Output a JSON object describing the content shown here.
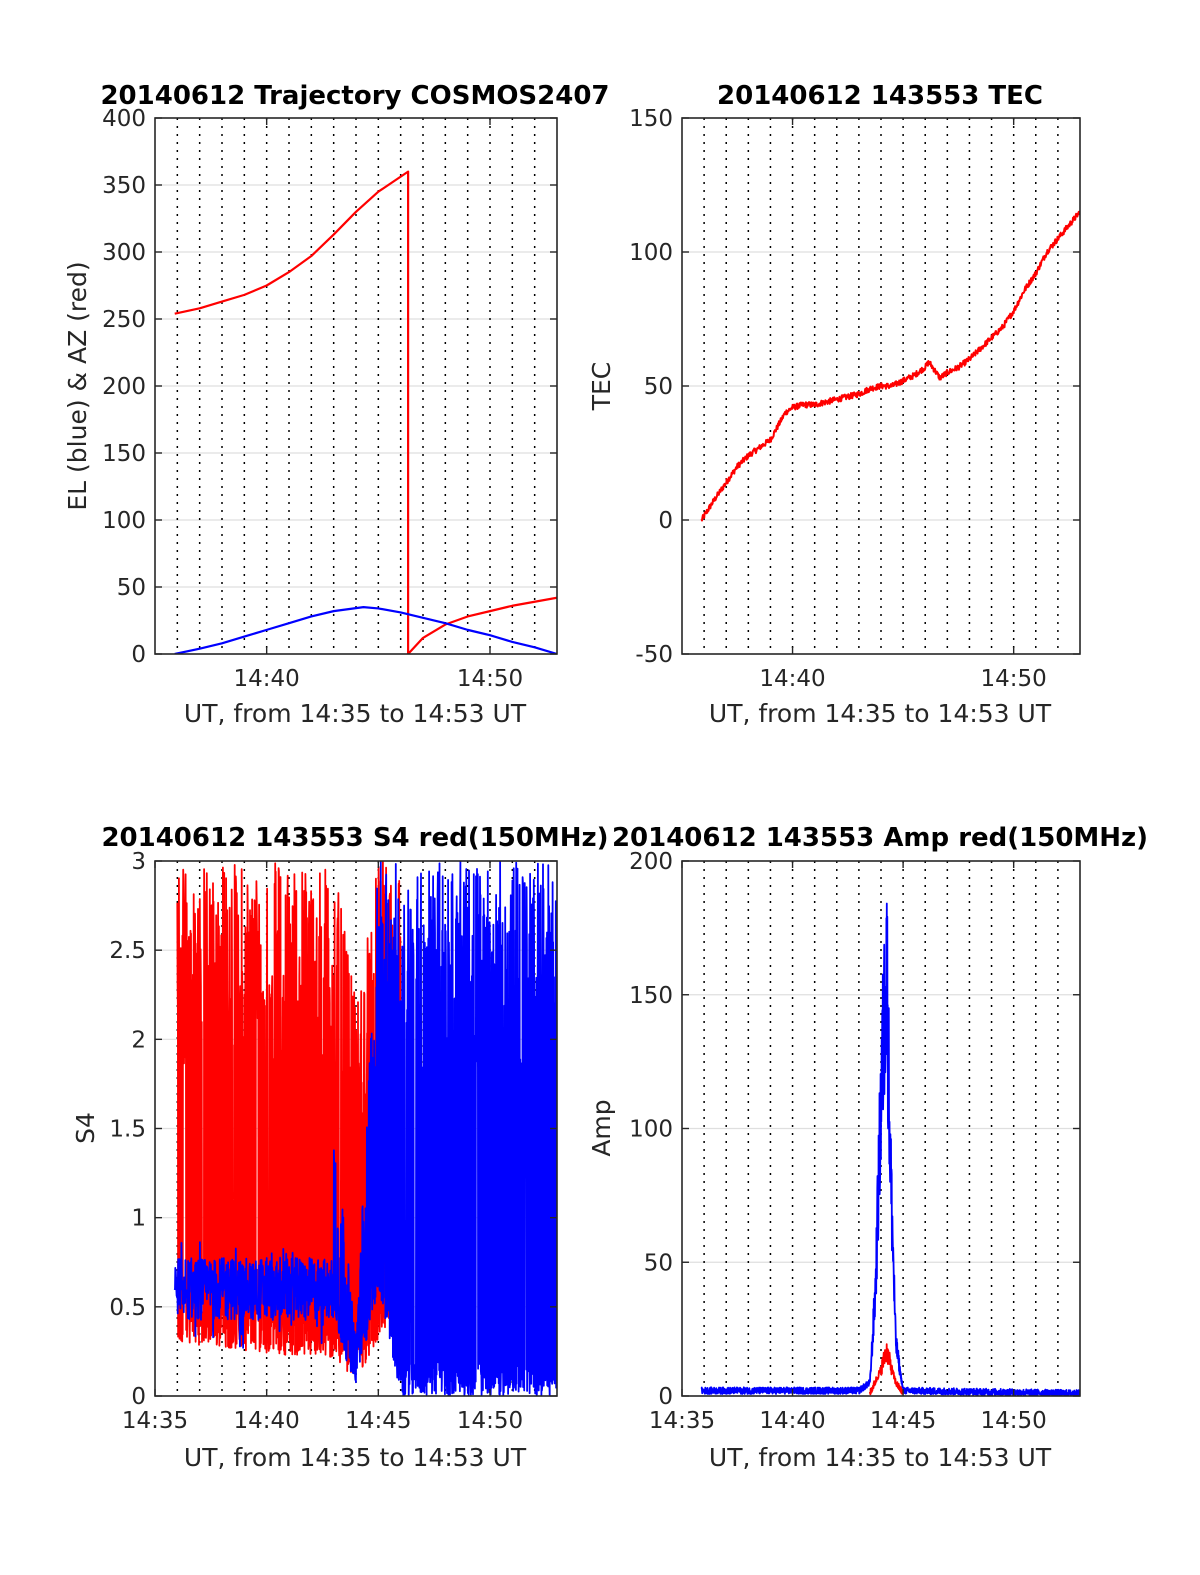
{
  "figure": {
    "colors": {
      "red": "#ff0000",
      "blue": "#0000ff",
      "grid": "#dfdfdf",
      "axis": "#262626"
    }
  },
  "chart_data": [
    {
      "id": "traj",
      "type": "line",
      "title": "20140612 Trajectory COSMOS2407",
      "xlabel": "UT, from 14:35 to 14:53 UT",
      "ylabel": "EL (blue) & AZ (red)",
      "xlim": [
        "14:35",
        "14:53"
      ],
      "ylim": [
        0,
        400
      ],
      "yticks": [
        0,
        50,
        100,
        150,
        200,
        250,
        300,
        350,
        400
      ],
      "xticks": [
        "14:40",
        "14:50"
      ],
      "grid": "horizontal gridlines; dotted vertical lines every minute",
      "series": [
        {
          "color": "#ff0000",
          "points": [
            [
              "14:35:53",
              254
            ],
            [
              "14:37:00",
              258
            ],
            [
              "14:38:00",
              263
            ],
            [
              "14:39:00",
              268
            ],
            [
              "14:40:00",
              275
            ],
            [
              "14:41:00",
              285
            ],
            [
              "14:42:00",
              297
            ],
            [
              "14:43:00",
              313
            ],
            [
              "14:44:00",
              330
            ],
            [
              "14:45:00",
              345
            ],
            [
              "14:46:20",
              360
            ],
            [
              "14:46:20",
              0
            ],
            [
              "14:47:00",
              12
            ],
            [
              "14:48:00",
              22
            ],
            [
              "14:49:00",
              28
            ],
            [
              "14:50:00",
              32
            ],
            [
              "14:51:00",
              36
            ],
            [
              "14:52:00",
              39
            ],
            [
              "14:53:00",
              42
            ]
          ]
        },
        {
          "color": "#0000ff",
          "points": [
            [
              "14:35:53",
              0
            ],
            [
              "14:37:00",
              4
            ],
            [
              "14:38:00",
              8
            ],
            [
              "14:39:00",
              13
            ],
            [
              "14:40:00",
              18
            ],
            [
              "14:41:00",
              23
            ],
            [
              "14:42:00",
              28
            ],
            [
              "14:43:00",
              32
            ],
            [
              "14:44:20",
              35
            ],
            [
              "14:45:00",
              34
            ],
            [
              "14:46:00",
              31
            ],
            [
              "14:47:00",
              27
            ],
            [
              "14:48:00",
              23
            ],
            [
              "14:49:00",
              18
            ],
            [
              "14:50:00",
              14
            ],
            [
              "14:51:00",
              9
            ],
            [
              "14:52:00",
              5
            ],
            [
              "14:53:00",
              0
            ]
          ]
        }
      ]
    },
    {
      "id": "tec",
      "type": "line",
      "title": "20140612 143553 TEC",
      "xlabel": "UT, from 14:35 to 14:53 UT",
      "ylabel": "TEC",
      "xlim": [
        "14:35",
        "14:53"
      ],
      "ylim": [
        -50,
        150
      ],
      "yticks": [
        -50,
        0,
        50,
        100,
        150
      ],
      "xticks": [
        "14:40",
        "14:50"
      ],
      "grid": "horizontal gridlines; dotted vertical lines every minute",
      "series": [
        {
          "color": "#ff0000",
          "points": [
            [
              "14:35:53",
              0
            ],
            [
              "14:36:30",
              8
            ],
            [
              "14:37:00",
              14
            ],
            [
              "14:37:30",
              20
            ],
            [
              "14:38:00",
              24
            ],
            [
              "14:38:30",
              27
            ],
            [
              "14:39:00",
              30
            ],
            [
              "14:39:20",
              35
            ],
            [
              "14:39:40",
              40
            ],
            [
              "14:40:00",
              42
            ],
            [
              "14:40:30",
              43
            ],
            [
              "14:41:00",
              43
            ],
            [
              "14:41:30",
              44
            ],
            [
              "14:42:00",
              45
            ],
            [
              "14:42:30",
              46
            ],
            [
              "14:43:00",
              47
            ],
            [
              "14:43:30",
              49
            ],
            [
              "14:44:00",
              50
            ],
            [
              "14:44:30",
              50
            ],
            [
              "14:45:00",
              52
            ],
            [
              "14:45:30",
              54
            ],
            [
              "14:46:00",
              57
            ],
            [
              "14:46:10",
              59
            ],
            [
              "14:46:40",
              53
            ],
            [
              "14:47:00",
              55
            ],
            [
              "14:47:30",
              57
            ],
            [
              "14:48:00",
              60
            ],
            [
              "14:48:30",
              64
            ],
            [
              "14:49:00",
              68
            ],
            [
              "14:49:30",
              72
            ],
            [
              "14:50:00",
              78
            ],
            [
              "14:50:30",
              86
            ],
            [
              "14:51:00",
              92
            ],
            [
              "14:51:30",
              100
            ],
            [
              "14:52:00",
              105
            ],
            [
              "14:52:30",
              110
            ],
            [
              "14:53:00",
              115
            ]
          ]
        }
      ]
    },
    {
      "id": "s4",
      "type": "line",
      "title": "20140612 143553 S4 red(150MHz)",
      "xlabel": "UT, from 14:35 to 14:53 UT",
      "ylabel": "S4",
      "xlim": [
        "14:35",
        "14:53"
      ],
      "ylim": [
        0,
        3
      ],
      "yticks": [
        0,
        0.5,
        1,
        1.5,
        2,
        2.5,
        3
      ],
      "xticks": [
        "14:35",
        "14:40",
        "14:45",
        "14:50"
      ],
      "grid": "horizontal gridlines; dotted vertical lines every minute",
      "series": [
        {
          "color": "#ff0000",
          "description": "dense noisy S4 between 0 and 3 from 14:36 to 14:43, then rising above 3 around 14:45-14:46",
          "envelope": [
            [
              "14:36:00",
              0.3,
              3
            ],
            [
              "14:43:00",
              0.2,
              3
            ],
            [
              "14:44:00",
              0.1,
              2.2
            ],
            [
              "14:45:00",
              0.3,
              3
            ],
            [
              "14:46:00",
              0.5,
              3
            ]
          ]
        },
        {
          "color": "#0000ff",
          "description": "noisy S4 about 0.4-0.8 from 14:36 to 14:43, dip near 0.1 at 14:44, dense 0-3 from 14:46 to 14:53",
          "envelope": [
            [
              "14:35:53",
              0.35,
              0.85
            ],
            [
              "14:43:00",
              0.4,
              1.6
            ],
            [
              "14:44:00",
              0.05,
              0.3
            ],
            [
              "14:45:00",
              0.6,
              3
            ],
            [
              "14:46:00",
              0,
              3
            ],
            [
              "14:53:00",
              0,
              3
            ]
          ]
        }
      ]
    },
    {
      "id": "amp",
      "type": "line",
      "title": "20140612 143553 Amp red(150MHz)",
      "xlabel": "UT, from 14:35 to 14:53 UT",
      "ylabel": "Amp",
      "xlim": [
        "14:35",
        "14:53"
      ],
      "ylim": [
        0,
        200
      ],
      "yticks": [
        0,
        50,
        100,
        150,
        200
      ],
      "xticks": [
        "14:35",
        "14:40",
        "14:45",
        "14:50"
      ],
      "grid": "horizontal gridlines; dotted vertical lines every minute",
      "series": [
        {
          "color": "#0000ff",
          "description": "amplitude near 2 with a peak reaching about 165 around 14:44",
          "points": [
            [
              "14:35:53",
              2
            ],
            [
              "14:43:00",
              2
            ],
            [
              "14:43:30",
              5
            ],
            [
              "14:43:45",
              40
            ],
            [
              "14:44:00",
              110
            ],
            [
              "14:44:15",
              165
            ],
            [
              "14:44:25",
              90
            ],
            [
              "14:44:40",
              20
            ],
            [
              "14:45:00",
              2
            ],
            [
              "14:53:00",
              1
            ]
          ]
        },
        {
          "color": "#ff0000",
          "description": "small bump up to about 17 near 14:44",
          "points": [
            [
              "14:43:30",
              1
            ],
            [
              "14:44:00",
              10
            ],
            [
              "14:44:15",
              17
            ],
            [
              "14:44:40",
              5
            ],
            [
              "14:45:00",
              1
            ]
          ]
        }
      ]
    }
  ]
}
